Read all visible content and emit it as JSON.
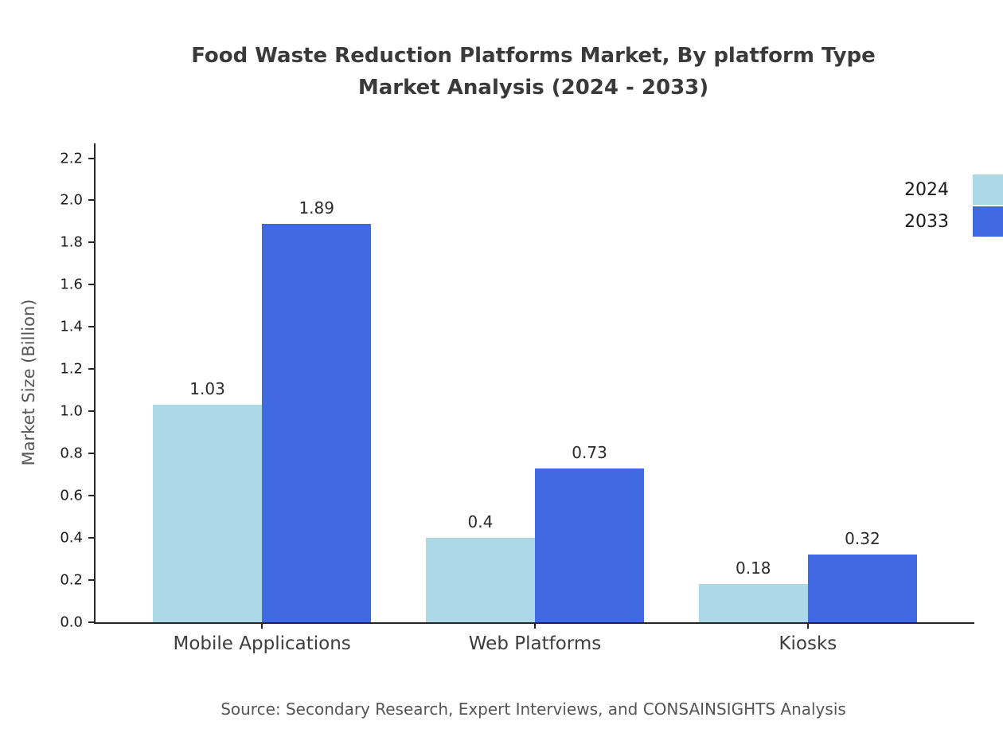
{
  "title": {
    "line1": "Food Waste Reduction Platforms Market, By platform Type",
    "line2": "Market Analysis (2024 - 2033)"
  },
  "chart_data": {
    "type": "bar",
    "title": "Food Waste Reduction Platforms Market, By platform Type Market Analysis (2024 - 2033)",
    "categories": [
      "Mobile Applications",
      "Web Platforms",
      "Kiosks"
    ],
    "series": [
      {
        "name": "2024",
        "color": "#add8e6",
        "values": [
          1.03,
          0.4,
          0.18
        ],
        "labels": [
          "1.03",
          "0.4",
          "0.18"
        ]
      },
      {
        "name": "2033",
        "color": "#4169e1",
        "values": [
          1.89,
          0.73,
          0.32
        ],
        "labels": [
          "1.89",
          "0.73",
          "0.32"
        ]
      }
    ],
    "xlabel": "",
    "ylabel": "Market Size (Billion)",
    "ylim": [
      0,
      2.27
    ],
    "yticks": [
      "0.0",
      "0.2",
      "0.4",
      "0.6",
      "0.8",
      "1.0",
      "1.2",
      "1.4",
      "1.6",
      "1.8",
      "2.0",
      "2.2"
    ],
    "grid": false,
    "legend_position": "top-right"
  },
  "source": "Source: Secondary Research, Expert Interviews, and CONSAINSIGHTS Analysis"
}
